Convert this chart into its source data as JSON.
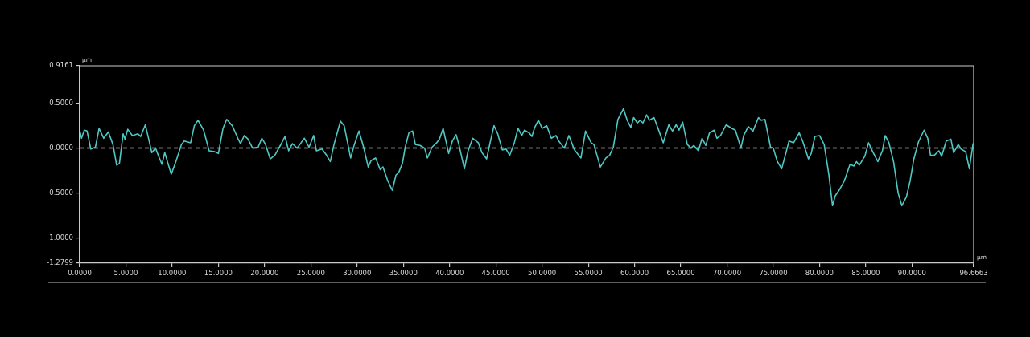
{
  "chart_data": {
    "type": "line",
    "xlabel": "µm",
    "ylabel": "µm",
    "color": "#4ec8c3",
    "marker": "none",
    "line_style": "solid",
    "grid": false,
    "legend": false,
    "xlim": [
      0,
      96.6663
    ],
    "ylim": [
      -1.2799,
      0.9161
    ],
    "xticks": [
      {
        "value": 0,
        "label": "0.0000"
      },
      {
        "value": 5,
        "label": "5.0000"
      },
      {
        "value": 10,
        "label": "10.0000"
      },
      {
        "value": 15,
        "label": "15.0000"
      },
      {
        "value": 20,
        "label": "20.0000"
      },
      {
        "value": 25,
        "label": "25.0000"
      },
      {
        "value": 30,
        "label": "30.0000"
      },
      {
        "value": 35,
        "label": "35.0000"
      },
      {
        "value": 40,
        "label": "40.0000"
      },
      {
        "value": 45,
        "label": "45.0000"
      },
      {
        "value": 50,
        "label": "50.0000"
      },
      {
        "value": 55,
        "label": "55.0000"
      },
      {
        "value": 60,
        "label": "60.0000"
      },
      {
        "value": 65,
        "label": "65.0000"
      },
      {
        "value": 70,
        "label": "70.0000"
      },
      {
        "value": 75,
        "label": "75.0000"
      },
      {
        "value": 80,
        "label": "80.0000"
      },
      {
        "value": 85,
        "label": "85.0000"
      },
      {
        "value": 90,
        "label": "90.0000"
      },
      96.6663
    ],
    "yticks": [
      -1.2799,
      {
        "value": -1,
        "label": "-1.0000"
      },
      {
        "value": -0.5,
        "label": "-0.5000"
      },
      {
        "value": 0,
        "label": "0.0000"
      },
      {
        "value": 0.5,
        "label": "0.5000"
      },
      0.9161
    ],
    "ref_lines": [
      {
        "axis": "y",
        "value": 0,
        "color": "#ddd6d6",
        "line_style": "dashed"
      }
    ],
    "x": [
      0.0,
      0.2,
      0.5,
      0.8,
      1.2,
      1.7,
      2.1,
      2.6,
      3.1,
      3.6,
      4.0,
      4.3,
      4.7,
      4.9,
      5.2,
      5.7,
      6.3,
      6.6,
      7.1,
      7.4,
      7.8,
      8.2,
      8.5,
      8.9,
      9.2,
      9.9,
      10.4,
      11.0,
      11.3,
      12.0,
      12.4,
      12.8,
      13.4,
      14.0,
      14.6,
      15.0,
      15.5,
      15.9,
      16.5,
      17.1,
      17.4,
      17.8,
      18.2,
      18.7,
      19.3,
      19.7,
      20.1,
      20.6,
      21.1,
      21.7,
      22.2,
      22.6,
      23.0,
      23.5,
      23.8,
      24.3,
      24.8,
      25.3,
      25.6,
      26.2,
      26.7,
      27.1,
      27.5,
      28.2,
      28.6,
      29.3,
      29.7,
      30.2,
      30.7,
      31.2,
      31.5,
      32.0,
      32.5,
      32.8,
      33.3,
      33.8,
      34.2,
      34.5,
      34.9,
      35.2,
      35.6,
      36.0,
      36.3,
      36.8,
      37.3,
      37.6,
      38.1,
      38.6,
      38.9,
      39.3,
      39.9,
      40.3,
      40.7,
      41.0,
      41.6,
      42.0,
      42.5,
      43.1,
      43.5,
      44.0,
      44.4,
      44.8,
      45.2,
      45.7,
      46.1,
      46.5,
      47.0,
      47.4,
      47.8,
      48.1,
      48.6,
      48.9,
      49.2,
      49.6,
      50.0,
      50.5,
      51.0,
      51.5,
      51.8,
      52.4,
      52.9,
      53.5,
      54.2,
      54.7,
      55.3,
      55.6,
      56.3,
      56.9,
      57.3,
      57.7,
      58.2,
      58.8,
      59.2,
      59.6,
      59.9,
      60.3,
      60.6,
      60.9,
      61.3,
      61.6,
      62.1,
      62.5,
      63.1,
      63.7,
      64.1,
      64.5,
      64.8,
      65.2,
      65.7,
      66.1,
      66.4,
      66.9,
      67.3,
      67.7,
      68.1,
      68.6,
      68.9,
      69.3,
      69.9,
      70.5,
      70.9,
      71.5,
      71.8,
      72.3,
      72.8,
      73.4,
      73.7,
      74.1,
      74.7,
      75.0,
      75.4,
      75.9,
      76.3,
      76.7,
      77.2,
      77.8,
      78.2,
      78.8,
      79.1,
      79.5,
      80.0,
      80.5,
      81.0,
      81.4,
      81.7,
      82.1,
      82.6,
      82.8,
      83.3,
      83.7,
      84.0,
      84.3,
      84.9,
      85.3,
      85.7,
      86.3,
      86.8,
      87.1,
      87.5,
      88.0,
      88.5,
      88.9,
      89.4,
      89.8,
      90.2,
      90.7,
      91.3,
      91.7,
      92.0,
      92.4,
      92.9,
      93.2,
      93.7,
      94.2,
      94.5,
      95.0,
      95.3,
      95.8,
      96.2,
      96.6
    ],
    "values": [
      0.2,
      0.11,
      0.2,
      0.19,
      -0.01,
      0.01,
      0.22,
      0.11,
      0.18,
      0.04,
      -0.19,
      -0.17,
      0.16,
      0.1,
      0.21,
      0.14,
      0.16,
      0.13,
      0.26,
      0.13,
      -0.05,
      0.0,
      -0.08,
      -0.18,
      -0.05,
      -0.29,
      -0.15,
      0.04,
      0.08,
      0.06,
      0.25,
      0.31,
      0.2,
      -0.03,
      -0.04,
      -0.06,
      0.22,
      0.32,
      0.25,
      0.11,
      0.05,
      0.14,
      0.1,
      0.0,
      0.01,
      0.11,
      0.04,
      -0.12,
      -0.08,
      0.03,
      0.13,
      -0.03,
      0.05,
      0.0,
      0.04,
      0.11,
      0.01,
      0.14,
      -0.03,
      -0.01,
      -0.08,
      -0.15,
      0.04,
      0.3,
      0.25,
      -0.11,
      0.04,
      0.19,
      0.01,
      -0.21,
      -0.14,
      -0.11,
      -0.24,
      -0.21,
      -0.36,
      -0.47,
      -0.3,
      -0.27,
      -0.17,
      0.01,
      0.17,
      0.19,
      0.04,
      0.03,
      0.0,
      -0.11,
      0.01,
      0.06,
      0.1,
      0.22,
      -0.06,
      0.08,
      0.15,
      0.04,
      -0.23,
      -0.03,
      0.11,
      0.06,
      -0.05,
      -0.12,
      0.07,
      0.25,
      0.16,
      -0.02,
      -0.01,
      -0.08,
      0.06,
      0.22,
      0.14,
      0.2,
      0.17,
      0.13,
      0.23,
      0.31,
      0.22,
      0.25,
      0.11,
      0.14,
      0.08,
      0.0,
      0.14,
      -0.02,
      -0.11,
      0.19,
      0.06,
      0.04,
      -0.21,
      -0.11,
      -0.08,
      0.01,
      0.32,
      0.44,
      0.31,
      0.23,
      0.34,
      0.28,
      0.31,
      0.28,
      0.37,
      0.31,
      0.34,
      0.23,
      0.06,
      0.26,
      0.19,
      0.26,
      0.2,
      0.29,
      0.04,
      0.0,
      0.03,
      -0.03,
      0.11,
      0.03,
      0.17,
      0.2,
      0.11,
      0.14,
      0.26,
      0.22,
      0.2,
      0.0,
      0.14,
      0.24,
      0.19,
      0.34,
      0.31,
      0.32,
      0.01,
      0.0,
      -0.14,
      -0.23,
      -0.08,
      0.08,
      0.06,
      0.17,
      0.07,
      -0.12,
      -0.06,
      0.13,
      0.14,
      0.04,
      -0.29,
      -0.64,
      -0.53,
      -0.47,
      -0.38,
      -0.33,
      -0.18,
      -0.2,
      -0.15,
      -0.19,
      -0.09,
      0.06,
      -0.03,
      -0.15,
      -0.03,
      0.14,
      0.06,
      -0.15,
      -0.5,
      -0.64,
      -0.54,
      -0.36,
      -0.12,
      0.07,
      0.2,
      0.11,
      -0.08,
      -0.08,
      -0.03,
      -0.09,
      0.08,
      0.1,
      -0.05,
      0.04,
      -0.01,
      -0.04,
      -0.23,
      0.05
    ]
  }
}
